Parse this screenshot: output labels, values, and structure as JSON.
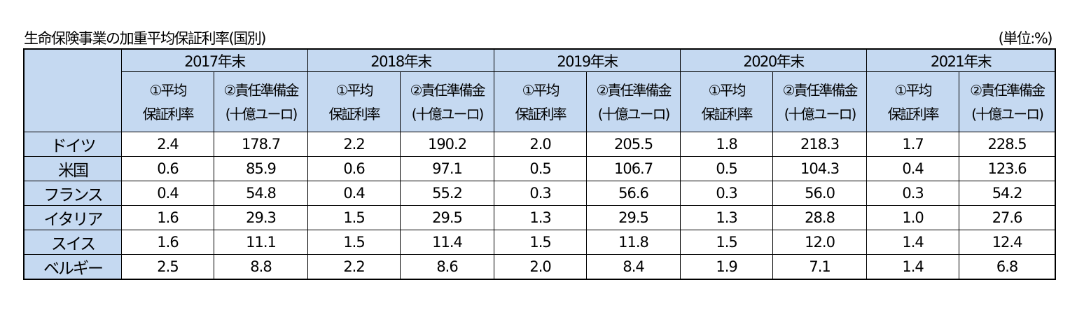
{
  "title": "生命保険事業の加重平均保証利率(国別)",
  "unit": "(単位:%)",
  "header": {
    "corner": "",
    "years": [
      "2017年末",
      "2018年末",
      "2019年末",
      "2020年末",
      "2021年末"
    ],
    "sub": {
      "rate_line1": "①平均",
      "rate_line2": "保証利率",
      "reserve_line1": "②責任準備金",
      "reserve_line2": "(十億ユーロ)"
    }
  },
  "rows": [
    {
      "country": "ドイツ",
      "values": [
        "2.4",
        "178.7",
        "2.2",
        "190.2",
        "2.0",
        "205.5",
        "1.8",
        "218.3",
        "1.7",
        "228.5"
      ]
    },
    {
      "country": "米国",
      "values": [
        "0.6",
        "85.9",
        "0.6",
        "97.1",
        "0.5",
        "106.7",
        "0.5",
        "104.3",
        "0.4",
        "123.6"
      ]
    },
    {
      "country": "フランス",
      "values": [
        "0.4",
        "54.8",
        "0.4",
        "55.2",
        "0.3",
        "56.6",
        "0.3",
        "56.0",
        "0.3",
        "54.2"
      ]
    },
    {
      "country": "イタリア",
      "values": [
        "1.6",
        "29.3",
        "1.5",
        "29.5",
        "1.3",
        "29.5",
        "1.3",
        "28.8",
        "1.0",
        "27.6"
      ]
    },
    {
      "country": "スイス",
      "values": [
        "1.6",
        "11.1",
        "1.5",
        "11.4",
        "1.5",
        "11.8",
        "1.5",
        "12.0",
        "1.4",
        "12.4"
      ]
    },
    {
      "country": "ベルギー",
      "values": [
        "2.5",
        "8.8",
        "2.2",
        "8.6",
        "2.0",
        "8.4",
        "1.9",
        "7.1",
        "1.4",
        "6.8"
      ]
    }
  ],
  "colors": {
    "header_background": "#c5d9f1",
    "border": "#000000",
    "body_background": "#ffffff"
  }
}
